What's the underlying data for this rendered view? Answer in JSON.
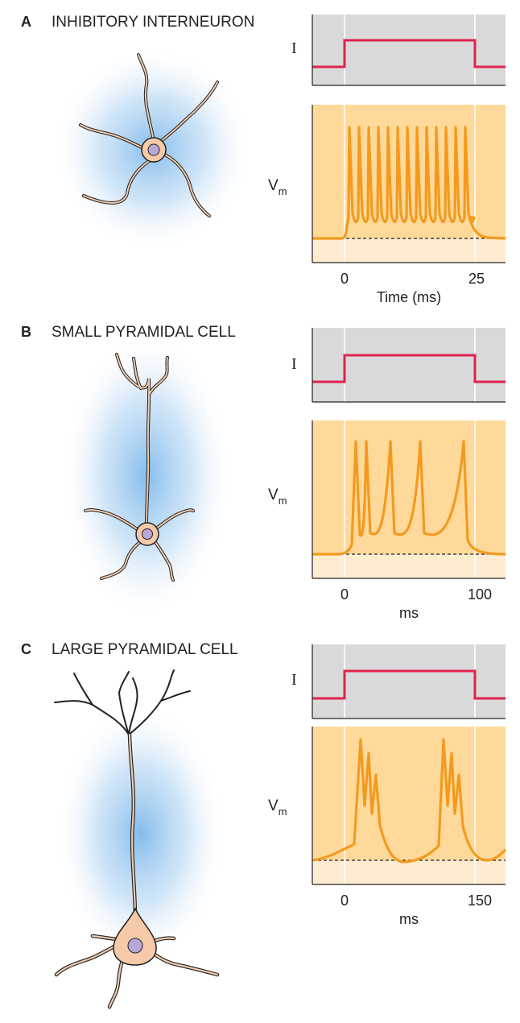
{
  "panels": [
    {
      "letter": "A",
      "title": "INHIBITORY INTERNEURON",
      "current_label": "I",
      "voltage_label": "V",
      "voltage_sub": "m",
      "tick_start": "0",
      "tick_end": "25",
      "axis_title": "Time (ms)",
      "firing": "fast spiking",
      "colors": {
        "current": "#e0224e",
        "voltage": "#f39a1e",
        "current_bg": "#d9d9d9",
        "voltage_bg": "#ffd99a"
      }
    },
    {
      "letter": "B",
      "title": "SMALL PYRAMIDAL CELL",
      "current_label": "I",
      "voltage_label": "V",
      "voltage_sub": "m",
      "tick_start": "0",
      "tick_end": "100",
      "axis_title": "ms",
      "firing": "regular spiking with adaptation",
      "colors": {
        "current": "#e0224e",
        "voltage": "#f39a1e",
        "current_bg": "#d9d9d9",
        "voltage_bg": "#ffd99a"
      }
    },
    {
      "letter": "C",
      "title": "LARGE PYRAMIDAL CELL",
      "current_label": "I",
      "voltage_label": "V",
      "voltage_sub": "m",
      "tick_start": "0",
      "tick_end": "150",
      "axis_title": "ms",
      "firing": "burst firing",
      "colors": {
        "current": "#e0224e",
        "voltage": "#f39a1e",
        "current_bg": "#d9d9d9",
        "voltage_bg": "#ffd99a"
      }
    }
  ]
}
